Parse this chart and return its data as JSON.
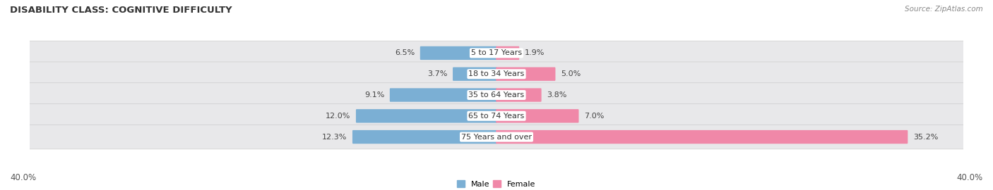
{
  "title": "DISABILITY CLASS: COGNITIVE DIFFICULTY",
  "source": "Source: ZipAtlas.com",
  "categories": [
    "5 to 17 Years",
    "18 to 34 Years",
    "35 to 64 Years",
    "65 to 74 Years",
    "75 Years and over"
  ],
  "male_values": [
    6.5,
    3.7,
    9.1,
    12.0,
    12.3
  ],
  "female_values": [
    1.9,
    5.0,
    3.8,
    7.0,
    35.2
  ],
  "male_color": "#7bafd4",
  "female_color": "#f088a8",
  "row_bg_color": "#e8e8ea",
  "axis_max": 40.0,
  "male_label": "Male",
  "female_label": "Female",
  "title_fontsize": 9.5,
  "label_fontsize": 8.0,
  "tick_fontsize": 8.5
}
